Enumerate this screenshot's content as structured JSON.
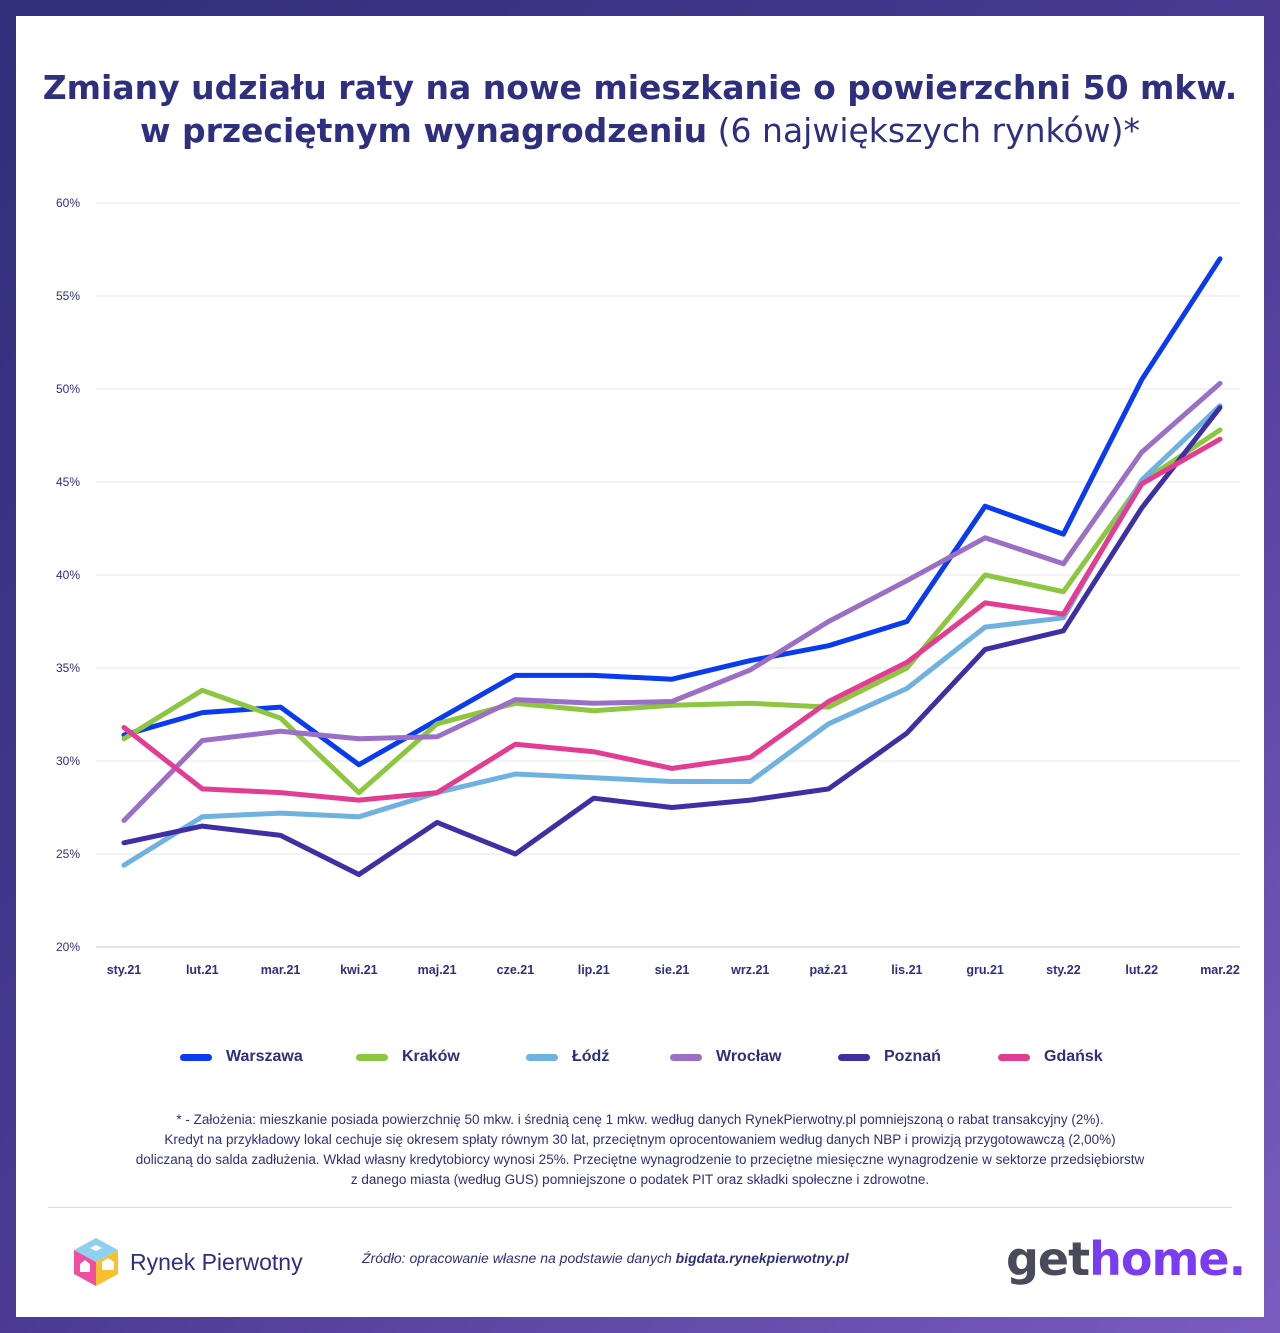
{
  "title": {
    "line1_bold": "Zmiany udziału raty na nowe mieszkanie o powierzchni 50 mkw.",
    "line2_bold": "w przeciętnym wynagrodzeniu",
    "line2_light": " (6 największych rynków)*"
  },
  "chart_data": {
    "type": "line",
    "categories": [
      "sty.21",
      "lut.21",
      "mar.21",
      "kwi.21",
      "maj.21",
      "cze.21",
      "lip.21",
      "sie.21",
      "wrz.21",
      "paź.21",
      "lis.21",
      "gru.21",
      "sty.22",
      "lut.22",
      "mar.22"
    ],
    "ylim": [
      20,
      60
    ],
    "yticks": [
      20,
      25,
      30,
      35,
      40,
      45,
      50,
      55,
      60
    ],
    "ytick_labels": [
      "20%",
      "25%",
      "30%",
      "35%",
      "40%",
      "45%",
      "50%",
      "55%",
      "60%"
    ],
    "grid": true,
    "legend_position": "bottom",
    "series": [
      {
        "name": "Warszawa",
        "color": "#0a3bef",
        "values": [
          31.4,
          32.6,
          32.9,
          29.8,
          32.2,
          34.6,
          34.6,
          34.4,
          35.4,
          36.2,
          37.5,
          43.7,
          42.2,
          50.5,
          57.0
        ]
      },
      {
        "name": "Kraków",
        "color": "#8dc63f",
        "values": [
          31.2,
          33.8,
          32.3,
          28.3,
          32.0,
          33.1,
          32.7,
          33.0,
          33.1,
          32.9,
          35.0,
          40.0,
          39.1,
          45.0,
          47.8
        ]
      },
      {
        "name": "Łódź",
        "color": "#6fb2e0",
        "values": [
          24.4,
          27.0,
          27.2,
          27.0,
          28.3,
          29.3,
          29.1,
          28.9,
          28.9,
          32.0,
          33.9,
          37.2,
          37.7,
          45.1,
          49.1
        ]
      },
      {
        "name": "Wrocław",
        "color": "#9b6fc6",
        "values": [
          26.8,
          31.1,
          31.6,
          31.2,
          31.3,
          33.3,
          33.1,
          33.2,
          34.9,
          37.5,
          39.7,
          42.0,
          40.6,
          46.6,
          50.3
        ]
      },
      {
        "name": "Poznań",
        "color": "#3d2fa4",
        "values": [
          25.6,
          26.5,
          26.0,
          23.9,
          26.7,
          25.0,
          28.0,
          27.5,
          27.9,
          28.5,
          31.5,
          36.0,
          37.0,
          43.6,
          49.0
        ]
      },
      {
        "name": "Gdańsk",
        "color": "#e23d93",
        "values": [
          31.8,
          28.5,
          28.3,
          27.9,
          28.3,
          30.9,
          30.5,
          29.6,
          30.2,
          33.2,
          35.3,
          38.5,
          37.9,
          44.9,
          47.3
        ]
      }
    ]
  },
  "footnote": {
    "line1": "* - Założenia: mieszkanie posiada powierzchnię 50 mkw. i średnią cenę 1 mkw. według danych RynekPierwotny.pl pomniejszoną o rabat transakcyjny (2%).",
    "line2": "Kredyt na przykładowy lokal cechuje się okresem spłaty równym 30 lat, przeciętnym oprocentowaniem według danych NBP i prowizją przygotowawczą (2,00%)",
    "line3": "doliczaną do salda zadłużenia. Wkład własny kredytobiorcy wynosi 25%. Przeciętne wynagrodzenie to przeciętne miesięczne wynagrodzenie w sektorze przedsiębiorstw",
    "line4": "z danego miasta (według GUS) pomniejszone o podatek PIT oraz składki społeczne i zdrowotne."
  },
  "footer": {
    "logo_left": "Rynek Pierwotny",
    "source_prefix": "Źródło: opracowanie własne na podstawie danych ",
    "source_bold": "bigdata.rynekpierwotny.pl",
    "logo_right_a": "get",
    "logo_right_b": "home."
  }
}
